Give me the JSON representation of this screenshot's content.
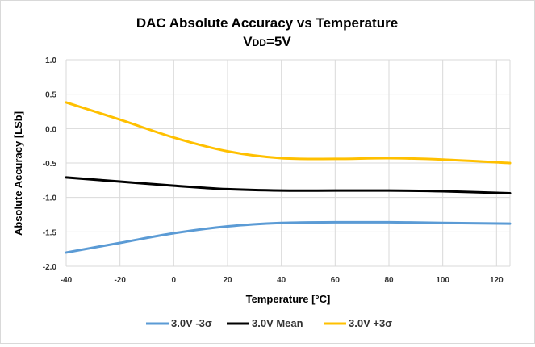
{
  "chart_data": {
    "type": "line",
    "title": "DAC Absolute Accuracy vs Temperature",
    "subtitle": {
      "prefix": "V",
      "sub": "DD",
      "suffix": "=5V"
    },
    "xlabel": "Temperature [°C]",
    "ylabel": "Absolute Accuracy [LSb]",
    "xlim": [
      -40,
      125
    ],
    "ylim": [
      -2.0,
      1.0
    ],
    "x_ticks": [
      "-40",
      "-20",
      "0",
      "20",
      "40",
      "60",
      "80",
      "100",
      "120"
    ],
    "y_ticks": [
      "1.0",
      "0.5",
      "0.0",
      "-0.5",
      "-1.0",
      "-1.5",
      "-2.0"
    ],
    "grid": true,
    "legend_position": "bottom",
    "x": [
      -40,
      -20,
      0,
      20,
      40,
      60,
      80,
      100,
      125
    ],
    "series": [
      {
        "name": "3.0V -3σ",
        "color": "#5b9bd5",
        "values": [
          -1.8,
          -1.66,
          -1.52,
          -1.42,
          -1.37,
          -1.36,
          -1.36,
          -1.37,
          -1.38
        ]
      },
      {
        "name": "3.0V Mean",
        "color": "#000000",
        "values": [
          -0.71,
          -0.77,
          -0.83,
          -0.88,
          -0.9,
          -0.9,
          -0.9,
          -0.91,
          -0.94
        ]
      },
      {
        "name": "3.0V +3σ",
        "color": "#ffc000",
        "values": [
          0.38,
          0.13,
          -0.13,
          -0.33,
          -0.43,
          -0.44,
          -0.43,
          -0.45,
          -0.5
        ]
      }
    ]
  }
}
